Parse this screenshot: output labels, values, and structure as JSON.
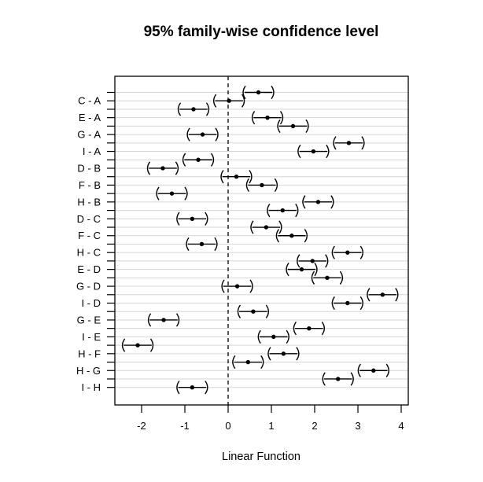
{
  "chart_data": {
    "type": "errorbar",
    "title": "95% family-wise confidence level",
    "xlabel": "Linear Function",
    "ylabel": "",
    "x_ticks": [
      -2,
      -1,
      0,
      1,
      2,
      3,
      4
    ],
    "xlim": [
      -2.62,
      4.16
    ],
    "grid": "horizontal",
    "legend_position": "none",
    "zero_reference_line": 0,
    "interval_halfwidth": 0.35,
    "colors": {
      "interval": "#000000",
      "estimate_dot": "#000000",
      "gridline": "#d6d6d6",
      "axis": "#000000",
      "background": "#ffffff"
    },
    "rows": [
      {
        "tick_label": "",
        "estimate": 0.7,
        "lower": 0.35,
        "upper": 1.05
      },
      {
        "tick_label": "C - A",
        "estimate": 0.02,
        "lower": -0.33,
        "upper": 0.37
      },
      {
        "tick_label": "",
        "estimate": -0.8,
        "lower": -1.15,
        "upper": -0.45
      },
      {
        "tick_label": "E - A",
        "estimate": 0.91,
        "lower": 0.56,
        "upper": 1.26
      },
      {
        "tick_label": "",
        "estimate": 1.5,
        "lower": 1.15,
        "upper": 1.85
      },
      {
        "tick_label": "G - A",
        "estimate": -0.59,
        "lower": -0.94,
        "upper": -0.24
      },
      {
        "tick_label": "",
        "estimate": 2.79,
        "lower": 2.44,
        "upper": 3.14
      },
      {
        "tick_label": "I - A",
        "estimate": 1.97,
        "lower": 1.62,
        "upper": 2.32
      },
      {
        "tick_label": "",
        "estimate": -0.69,
        "lower": -1.04,
        "upper": -0.34
      },
      {
        "tick_label": "D - B",
        "estimate": -1.51,
        "lower": -1.86,
        "upper": -1.16
      },
      {
        "tick_label": "",
        "estimate": 0.19,
        "lower": -0.16,
        "upper": 0.54
      },
      {
        "tick_label": "F - B",
        "estimate": 0.78,
        "lower": 0.43,
        "upper": 1.13
      },
      {
        "tick_label": "",
        "estimate": -1.3,
        "lower": -1.65,
        "upper": -0.95
      },
      {
        "tick_label": "H - B",
        "estimate": 2.08,
        "lower": 1.73,
        "upper": 2.43
      },
      {
        "tick_label": "",
        "estimate": 1.26,
        "lower": 0.91,
        "upper": 1.61
      },
      {
        "tick_label": "D - C",
        "estimate": -0.83,
        "lower": -1.18,
        "upper": -0.48
      },
      {
        "tick_label": "",
        "estimate": 0.88,
        "lower": 0.53,
        "upper": 1.23
      },
      {
        "tick_label": "F - C",
        "estimate": 1.47,
        "lower": 1.12,
        "upper": 1.82
      },
      {
        "tick_label": "",
        "estimate": -0.61,
        "lower": -0.96,
        "upper": -0.26
      },
      {
        "tick_label": "H - C",
        "estimate": 2.76,
        "lower": 2.41,
        "upper": 3.11
      },
      {
        "tick_label": "",
        "estimate": 1.95,
        "lower": 1.6,
        "upper": 2.3
      },
      {
        "tick_label": "E - D",
        "estimate": 1.7,
        "lower": 1.35,
        "upper": 2.05
      },
      {
        "tick_label": "",
        "estimate": 2.29,
        "lower": 1.94,
        "upper": 2.64
      },
      {
        "tick_label": "G - D",
        "estimate": 0.21,
        "lower": -0.14,
        "upper": 0.56
      },
      {
        "tick_label": "",
        "estimate": 3.57,
        "lower": 3.22,
        "upper": 3.92
      },
      {
        "tick_label": "I - D",
        "estimate": 2.76,
        "lower": 2.41,
        "upper": 3.11
      },
      {
        "tick_label": "",
        "estimate": 0.58,
        "lower": 0.23,
        "upper": 0.93
      },
      {
        "tick_label": "G - E",
        "estimate": -1.49,
        "lower": -1.84,
        "upper": -1.14
      },
      {
        "tick_label": "",
        "estimate": 1.87,
        "lower": 1.52,
        "upper": 2.22
      },
      {
        "tick_label": "I - E",
        "estimate": 1.05,
        "lower": 0.7,
        "upper": 1.4
      },
      {
        "tick_label": "",
        "estimate": -2.09,
        "lower": -2.44,
        "upper": -1.74
      },
      {
        "tick_label": "H - F",
        "estimate": 1.28,
        "lower": 0.93,
        "upper": 1.63
      },
      {
        "tick_label": "",
        "estimate": 0.46,
        "lower": 0.11,
        "upper": 0.81
      },
      {
        "tick_label": "H - G",
        "estimate": 3.36,
        "lower": 3.01,
        "upper": 3.71
      },
      {
        "tick_label": "",
        "estimate": 2.54,
        "lower": 2.19,
        "upper": 2.89
      },
      {
        "tick_label": "I - H",
        "estimate": -0.83,
        "lower": -1.18,
        "upper": -0.48
      }
    ]
  }
}
